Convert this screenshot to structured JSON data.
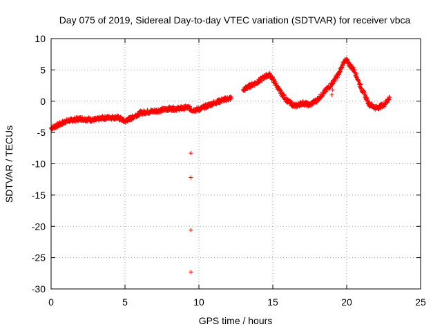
{
  "chart_data": {
    "type": "scatter",
    "title": "Day 075 of 2019, Sidereal Day-to-day VTEC variation (SDTVAR) for receiver vbca",
    "xlabel": "GPS time / hours",
    "ylabel": "SDTVAR / TECUs",
    "xlim": [
      0,
      25
    ],
    "ylim": [
      -30,
      10
    ],
    "xticks": [
      0,
      5,
      10,
      15,
      20,
      25
    ],
    "yticks": [
      -30,
      -25,
      -20,
      -15,
      -10,
      -5,
      0,
      5,
      10
    ],
    "grid": true,
    "marker": "+",
    "color": "#ff0000",
    "series": [
      {
        "name": "SDTVAR",
        "trend_points": [
          [
            0.0,
            -4.3
          ],
          [
            0.5,
            -3.8
          ],
          [
            1.0,
            -3.2
          ],
          [
            1.5,
            -3.0
          ],
          [
            2.0,
            -2.8
          ],
          [
            2.5,
            -2.9
          ],
          [
            3.0,
            -3.0
          ],
          [
            3.5,
            -2.7
          ],
          [
            4.0,
            -2.6
          ],
          [
            4.5,
            -2.6
          ],
          [
            5.0,
            -3.2
          ],
          [
            5.5,
            -2.6
          ],
          [
            6.0,
            -1.9
          ],
          [
            6.5,
            -1.7
          ],
          [
            7.0,
            -1.6
          ],
          [
            7.5,
            -1.4
          ],
          [
            8.0,
            -1.2
          ],
          [
            8.5,
            -1.2
          ],
          [
            9.0,
            -1.1
          ],
          [
            9.3,
            -1.0
          ],
          [
            9.5,
            -1.4
          ],
          [
            10.0,
            -1.3
          ],
          [
            10.5,
            -0.8
          ],
          [
            11.0,
            -0.3
          ],
          [
            11.5,
            0.1
          ],
          [
            12.0,
            0.4
          ],
          [
            12.2,
            0.5
          ],
          [
            13.0,
            1.8
          ],
          [
            13.5,
            2.5
          ],
          [
            14.0,
            3.1
          ],
          [
            14.5,
            4.0
          ],
          [
            14.8,
            4.2
          ],
          [
            15.0,
            3.5
          ],
          [
            15.5,
            1.5
          ],
          [
            16.0,
            0.0
          ],
          [
            16.5,
            -0.8
          ],
          [
            17.0,
            -0.3
          ],
          [
            17.5,
            -0.6
          ],
          [
            18.0,
            0.2
          ],
          [
            18.5,
            1.5
          ],
          [
            19.0,
            2.8
          ],
          [
            19.5,
            4.5
          ],
          [
            19.8,
            6.3
          ],
          [
            20.0,
            6.5
          ],
          [
            20.3,
            5.5
          ],
          [
            20.5,
            5.0
          ],
          [
            21.0,
            2.0
          ],
          [
            21.5,
            -0.4
          ],
          [
            22.0,
            -1.1
          ],
          [
            22.5,
            -0.6
          ],
          [
            22.8,
            0.2
          ],
          [
            22.9,
            0.6
          ]
        ],
        "outliers": [
          [
            9.45,
            -8.3
          ],
          [
            9.45,
            -12.2
          ],
          [
            9.45,
            -20.6
          ],
          [
            9.45,
            -27.3
          ],
          [
            19.0,
            1.0
          ],
          [
            19.05,
            1.8
          ]
        ]
      }
    ]
  }
}
